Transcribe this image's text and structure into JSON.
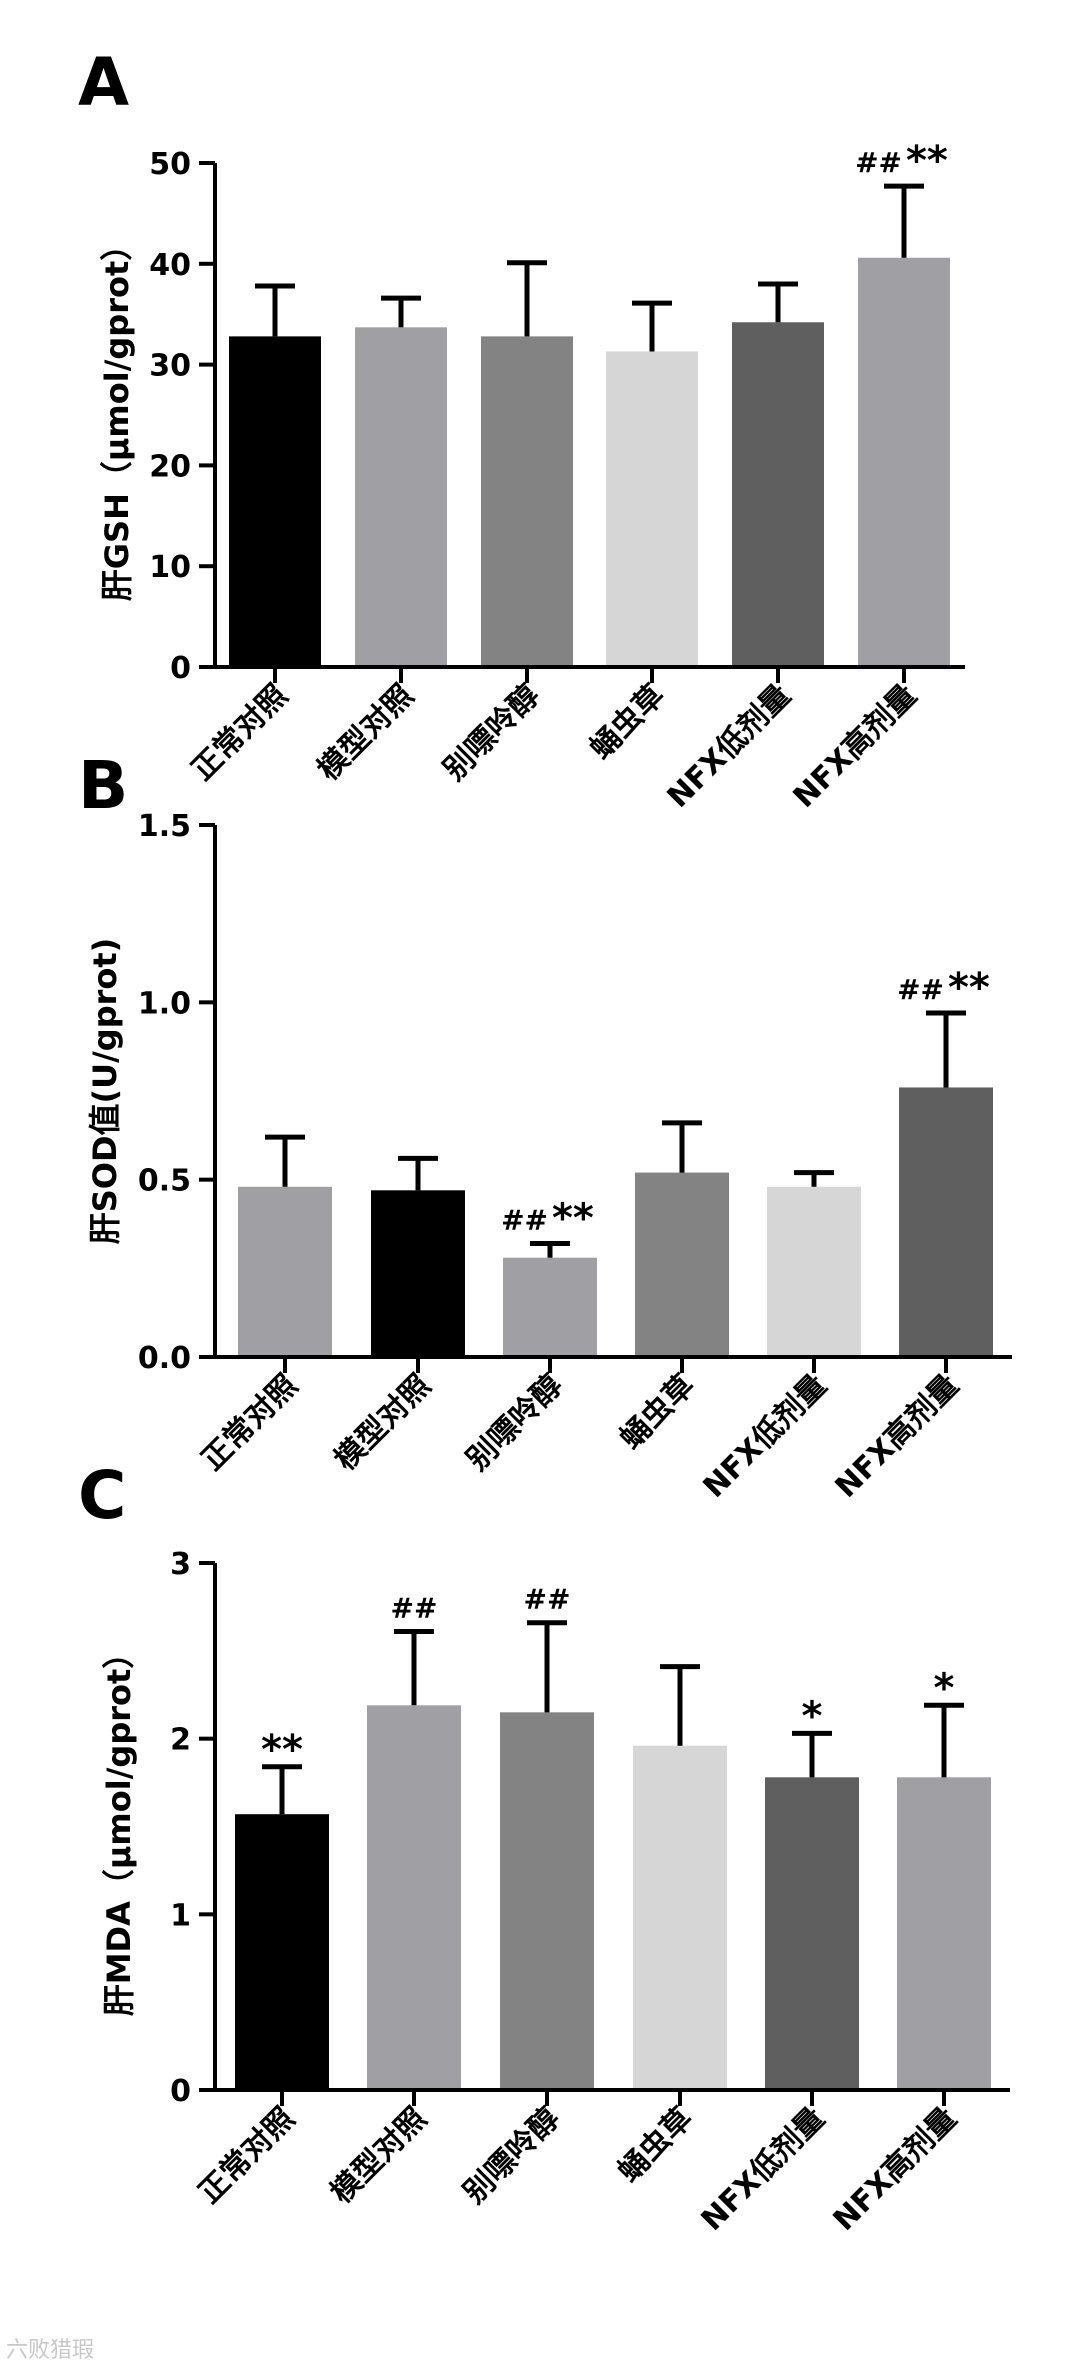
{
  "watermark": "六败猎瑕",
  "chart_data": [
    {
      "type": "bar",
      "panel": "A",
      "ylabel": "肝GSH（μmol/gprot）",
      "ylim": [
        0,
        50
      ],
      "yticks": [
        0,
        10,
        20,
        30,
        40,
        50
      ],
      "ytick_labels": [
        "0",
        "10",
        "20",
        "30",
        "40",
        "50"
      ],
      "categories": [
        "正常对照",
        "模型对照",
        "别嘌呤醇",
        "蛹虫草",
        "NFX低剂量",
        "NFX高剂量"
      ],
      "values": [
        32.8,
        33.7,
        32.8,
        31.3,
        34.2,
        40.6
      ],
      "errors": [
        5.0,
        2.9,
        7.3,
        4.8,
        3.8,
        7.1
      ],
      "colors": [
        "#000000",
        "#a0a0a4",
        "#838383",
        "#d6d6d6",
        "#5f5f5f",
        "#a0a0a4"
      ],
      "annotations": [
        {
          "hash": "",
          "star": ""
        },
        {
          "hash": "",
          "star": ""
        },
        {
          "hash": "",
          "star": ""
        },
        {
          "hash": "",
          "star": ""
        },
        {
          "hash": "",
          "star": ""
        },
        {
          "hash": "##",
          "star": "**"
        }
      ]
    },
    {
      "type": "bar",
      "panel": "B",
      "ylabel": "肝SOD值(U/gprot)",
      "ylim": [
        0,
        1.5
      ],
      "yticks": [
        0,
        0.5,
        1.0,
        1.5
      ],
      "ytick_labels": [
        "0.0",
        "0.5",
        "1.0",
        "1.5"
      ],
      "categories": [
        "正常对照",
        "模型对照",
        "别嘌呤醇",
        "蛹虫草",
        "NFX低剂量",
        "NFX高剂量"
      ],
      "values": [
        0.48,
        0.47,
        0.28,
        0.52,
        0.48,
        0.76
      ],
      "errors": [
        0.14,
        0.09,
        0.04,
        0.14,
        0.04,
        0.21
      ],
      "colors": [
        "#a0a0a4",
        "#000000",
        "#a0a0a4",
        "#838383",
        "#d6d6d6",
        "#5f5f5f"
      ],
      "annotations": [
        {
          "hash": "",
          "star": ""
        },
        {
          "hash": "",
          "star": ""
        },
        {
          "hash": "##",
          "star": "**"
        },
        {
          "hash": "",
          "star": ""
        },
        {
          "hash": "",
          "star": ""
        },
        {
          "hash": "##",
          "star": "**"
        }
      ]
    },
    {
      "type": "bar",
      "panel": "C",
      "ylabel": "肝MDA（μmol/gprot）",
      "ylim": [
        0,
        3
      ],
      "yticks": [
        0,
        1,
        2,
        3
      ],
      "ytick_labels": [
        "0",
        "1",
        "2",
        "3"
      ],
      "categories": [
        "正常对照",
        "模型对照",
        "别嘌呤醇",
        "蛹虫草",
        "NFX低剂量",
        "NFX高剂量"
      ],
      "values": [
        1.57,
        2.19,
        2.15,
        1.96,
        1.78,
        1.78
      ],
      "errors": [
        0.27,
        0.42,
        0.51,
        0.45,
        0.25,
        0.41
      ],
      "colors": [
        "#000000",
        "#a0a0a4",
        "#838383",
        "#d6d6d6",
        "#5f5f5f",
        "#a0a0a4"
      ],
      "annotations": [
        {
          "hash": "",
          "star": "**"
        },
        {
          "hash": "##",
          "star": ""
        },
        {
          "hash": "##",
          "star": ""
        },
        {
          "hash": "",
          "star": ""
        },
        {
          "hash": "",
          "star": "*"
        },
        {
          "hash": "",
          "star": "*"
        }
      ]
    }
  ]
}
